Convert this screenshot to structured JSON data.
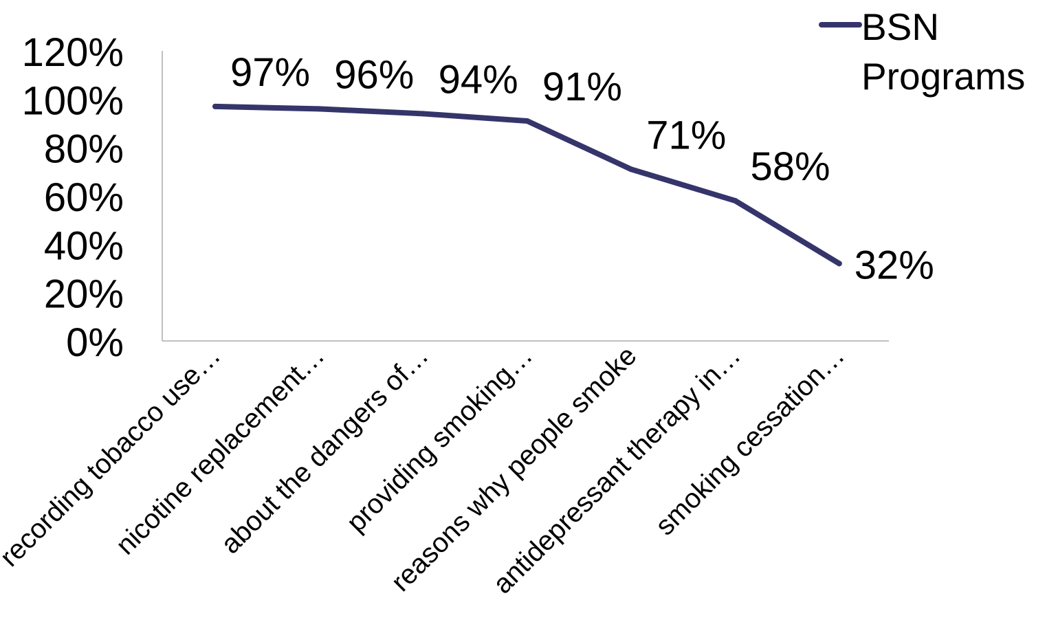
{
  "chart_data": {
    "type": "line",
    "title": "",
    "xlabel": "",
    "ylabel": "",
    "ylim": [
      0,
      1.2
    ],
    "y_tick_labels": [
      "120%",
      "100%",
      "80%",
      "60%",
      "40%",
      "20%",
      "0%"
    ],
    "y_tick_values": [
      1.2,
      1.0,
      0.8,
      0.6,
      0.4,
      0.2,
      0.0
    ],
    "categories": [
      "recording tobacco use…",
      "nicotine replacement…",
      "about the dangers of…",
      "providing smoking…",
      "reasons why people smoke",
      "antidepressant therapy in…",
      "smoking cessation…"
    ],
    "series": [
      {
        "name": "BSN Programs",
        "values": [
          0.97,
          0.96,
          0.94,
          0.91,
          0.71,
          0.58,
          0.32
        ],
        "data_labels": [
          "97%",
          "96%",
          "94%",
          "91%",
          "71%",
          "58%",
          "32%"
        ],
        "color": "#35356b"
      }
    ],
    "legend": {
      "position": "top-right",
      "label_line1": "BSN",
      "label_line2": "Programs"
    },
    "grid": false
  }
}
